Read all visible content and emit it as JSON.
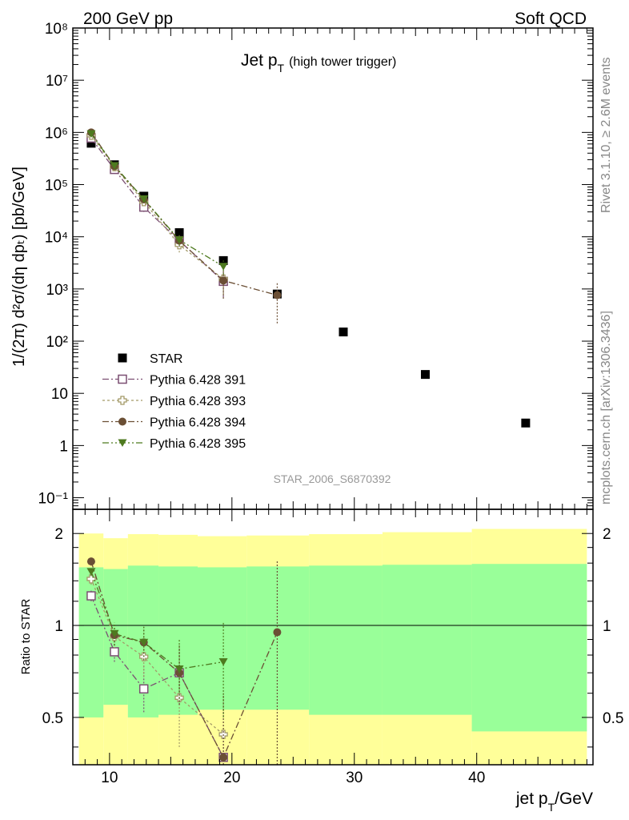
{
  "header": {
    "left": "200 GeV pp",
    "right": "Soft QCD"
  },
  "side": {
    "rivet": "Rivet 3.1.10, ≥ 2.6M events",
    "mcplots": "mcplots.cern.ch [arXiv:1306.3436]"
  },
  "plot_title": {
    "main": "Jet p",
    "main_sub": "T",
    "note": "(high tower trigger)"
  },
  "analysis_label": "STAR_2006_S6870392",
  "axes": {
    "y_main_label": "1/(2π) d²σ/(dη dpₜ) [pb/GeV]",
    "y_ratio_label": "Ratio to STAR",
    "x_label": "jet p",
    "x_label_sub": "T",
    "x_label_unit": "/GeV",
    "main_y_ticks": [
      "10⁻¹",
      "1",
      "10",
      "10²",
      "10³",
      "10⁴",
      "10⁵",
      "10⁶",
      "10⁷",
      "10⁸"
    ],
    "ratio_y_ticks": [
      "0.5",
      "1",
      "2"
    ],
    "x_ticks": [
      "10",
      "20",
      "30",
      "40"
    ]
  },
  "legend": [
    {
      "label": "STAR",
      "marker": "square-filled",
      "color": "#000000"
    },
    {
      "label": "Pythia 6.428 391",
      "marker": "square-open",
      "color": "#7b4f72"
    },
    {
      "label": "Pythia 6.428 393",
      "marker": "cross-open",
      "color": "#a39a68"
    },
    {
      "label": "Pythia 6.428 394",
      "marker": "circle-filled",
      "color": "#6b4f35"
    },
    {
      "label": "Pythia 6.428 395",
      "marker": "triangle-down",
      "color": "#4e7a1f"
    }
  ],
  "chart_data": [
    {
      "type": "scatter",
      "yscale": "log",
      "xlim": [
        7,
        49.5
      ],
      "ylim": [
        0.06,
        100000000
      ],
      "series": [
        {
          "name": "STAR",
          "x": [
            8.5,
            10.4,
            12.8,
            15.7,
            19.3,
            23.7,
            29.1,
            35.8,
            44.0
          ],
          "y": [
            620000,
            240000,
            60000,
            12000,
            3500,
            800,
            150,
            23,
            2.7
          ]
        },
        {
          "name": "Pythia 6.428 391",
          "x": [
            8.5,
            10.4,
            12.8,
            15.7,
            19.3
          ],
          "y": [
            780000,
            195000,
            37000,
            8400,
            1400
          ],
          "ylo": [
            700000,
            170000,
            30000,
            6500,
            700
          ],
          "yhi": [
            860000,
            220000,
            44000,
            10500,
            2100
          ]
        },
        {
          "name": "Pythia 6.428 393",
          "x": [
            8.5,
            10.4,
            12.8,
            15.7,
            19.3
          ],
          "y": [
            880000,
            220000,
            47000,
            7000,
            1550
          ],
          "ylo": [
            800000,
            195000,
            39000,
            5000,
            800
          ],
          "yhi": [
            960000,
            245000,
            55000,
            9000,
            2300
          ]
        },
        {
          "name": "Pythia 6.428 394",
          "x": [
            8.5,
            10.4,
            12.8,
            15.7,
            19.3,
            23.7
          ],
          "y": [
            1000000,
            225000,
            52000,
            8400,
            1450,
            760
          ],
          "ylo": [
            920000,
            200000,
            44000,
            6400,
            650,
            220
          ],
          "yhi": [
            1080000,
            250000,
            60000,
            10400,
            2250,
            1300
          ]
        },
        {
          "name": "Pythia 6.428 395",
          "x": [
            8.5,
            10.4,
            12.8,
            15.7,
            19.3
          ],
          "y": [
            940000,
            230000,
            53000,
            8700,
            2700
          ],
          "ylo": [
            860000,
            205000,
            45000,
            6700,
            1900
          ],
          "yhi": [
            1020000,
            255000,
            61000,
            10700,
            3500
          ]
        }
      ]
    },
    {
      "type": "scatter",
      "yscale": "log",
      "ylabel": "Ratio to STAR",
      "xlim": [
        7,
        49.5
      ],
      "ylim": [
        0.35,
        2.4
      ],
      "reference_line": 1,
      "bands": [
        {
          "name": "inner",
          "color": "#99ff99",
          "bins": [
            [
              7.5,
              9.5,
              0.5,
              1.55
            ],
            [
              9.5,
              11.5,
              0.55,
              1.53
            ],
            [
              11.5,
              14.0,
              0.5,
              1.57
            ],
            [
              14.0,
              17.2,
              0.51,
              1.56
            ],
            [
              17.2,
              21.2,
              0.53,
              1.55
            ],
            [
              21.2,
              26.3,
              0.53,
              1.56
            ],
            [
              26.3,
              32.3,
              0.51,
              1.57
            ],
            [
              32.3,
              39.6,
              0.51,
              1.58
            ],
            [
              39.6,
              49.0,
              0.45,
              1.59
            ]
          ]
        },
        {
          "name": "outer",
          "color": "#ffff99",
          "bins": [
            [
              7.5,
              9.5,
              0.35,
              2.0
            ],
            [
              9.5,
              11.5,
              0.35,
              1.93
            ],
            [
              11.5,
              14.0,
              0.35,
              1.99
            ],
            [
              14.0,
              17.2,
              0.35,
              1.98
            ],
            [
              17.2,
              21.2,
              0.35,
              1.96
            ],
            [
              21.2,
              26.3,
              0.35,
              1.97
            ],
            [
              26.3,
              32.3,
              0.35,
              1.99
            ],
            [
              32.3,
              39.6,
              0.35,
              2.02
            ],
            [
              39.6,
              49.0,
              0.35,
              2.07
            ]
          ]
        }
      ],
      "series": [
        {
          "name": "Pythia 6.428 391",
          "x": [
            8.5,
            10.4,
            12.8,
            15.7,
            19.3
          ],
          "y": [
            1.25,
            0.82,
            0.62,
            0.7,
            0.37
          ],
          "ylo": [
            1.2,
            0.76,
            0.52,
            0.55,
            0.3
          ],
          "yhi": [
            1.3,
            0.9,
            0.74,
            0.85,
            0.45
          ]
        },
        {
          "name": "Pythia 6.428 393",
          "x": [
            8.5,
            10.4,
            12.8,
            15.7,
            19.3
          ],
          "y": [
            1.42,
            0.92,
            0.79,
            0.58,
            0.44
          ],
          "ylo": [
            1.36,
            0.84,
            0.68,
            0.4,
            0.3
          ],
          "yhi": [
            1.48,
            1.0,
            0.9,
            0.75,
            0.6
          ]
        },
        {
          "name": "Pythia 6.428 394",
          "x": [
            8.5,
            10.4,
            12.8,
            15.7,
            19.3,
            23.7
          ],
          "y": [
            1.62,
            0.93,
            0.88,
            0.7,
            0.37,
            0.95
          ],
          "ylo": [
            1.57,
            0.86,
            0.77,
            0.55,
            0.3,
            0.3
          ],
          "yhi": [
            1.67,
            1.0,
            0.99,
            0.87,
            0.6,
            1.64
          ]
        },
        {
          "name": "Pythia 6.428 395",
          "x": [
            8.5,
            10.4,
            12.8,
            15.7,
            19.3
          ],
          "y": [
            1.5,
            0.94,
            0.88,
            0.72,
            0.76
          ],
          "ylo": [
            1.45,
            0.86,
            0.77,
            0.56,
            0.5
          ],
          "yhi": [
            1.55,
            1.02,
            0.99,
            0.9,
            1.03
          ]
        }
      ]
    }
  ]
}
